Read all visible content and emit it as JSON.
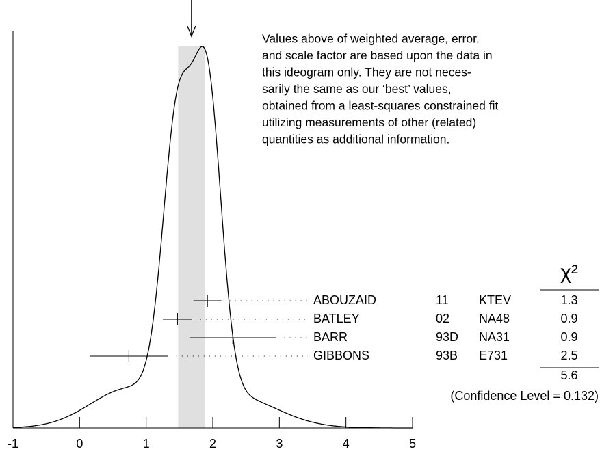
{
  "chart_data": {
    "type": "ideogram",
    "note": [
      "Values above of weighted average, error,",
      "and scale factor are based upon the data in",
      "this ideogram only.  They are not neces-",
      "sarily the same as our ‘best’ values,",
      "obtained from a least-squares constrained fit",
      "utilizing measurements of other (related)",
      "quantities as additional information."
    ],
    "average": 1.68,
    "average_error": 0.2,
    "xlim": [
      -1,
      5
    ],
    "xticks": [
      -1,
      0,
      1,
      2,
      3,
      4,
      5
    ],
    "chi2_header": "χ²",
    "measurements": [
      {
        "name": "ABOUZAID",
        "year": "11",
        "experiment": "KTEV",
        "value": 1.92,
        "error": 0.21,
        "chi2": 1.3
      },
      {
        "name": "BATLEY",
        "year": "02",
        "experiment": "NA48",
        "value": 1.47,
        "error": 0.22,
        "chi2": 0.9
      },
      {
        "name": "BARR",
        "year": "93D",
        "experiment": "NA31",
        "value": 2.3,
        "error": 0.65,
        "chi2": 0.9
      },
      {
        "name": "GIBBONS",
        "year": "93B",
        "experiment": "E731",
        "value": 0.74,
        "error": 0.59,
        "chi2": 2.5
      }
    ],
    "chi2_total": 5.6,
    "confidence_level": "(Confidence Level = 0.132)"
  }
}
